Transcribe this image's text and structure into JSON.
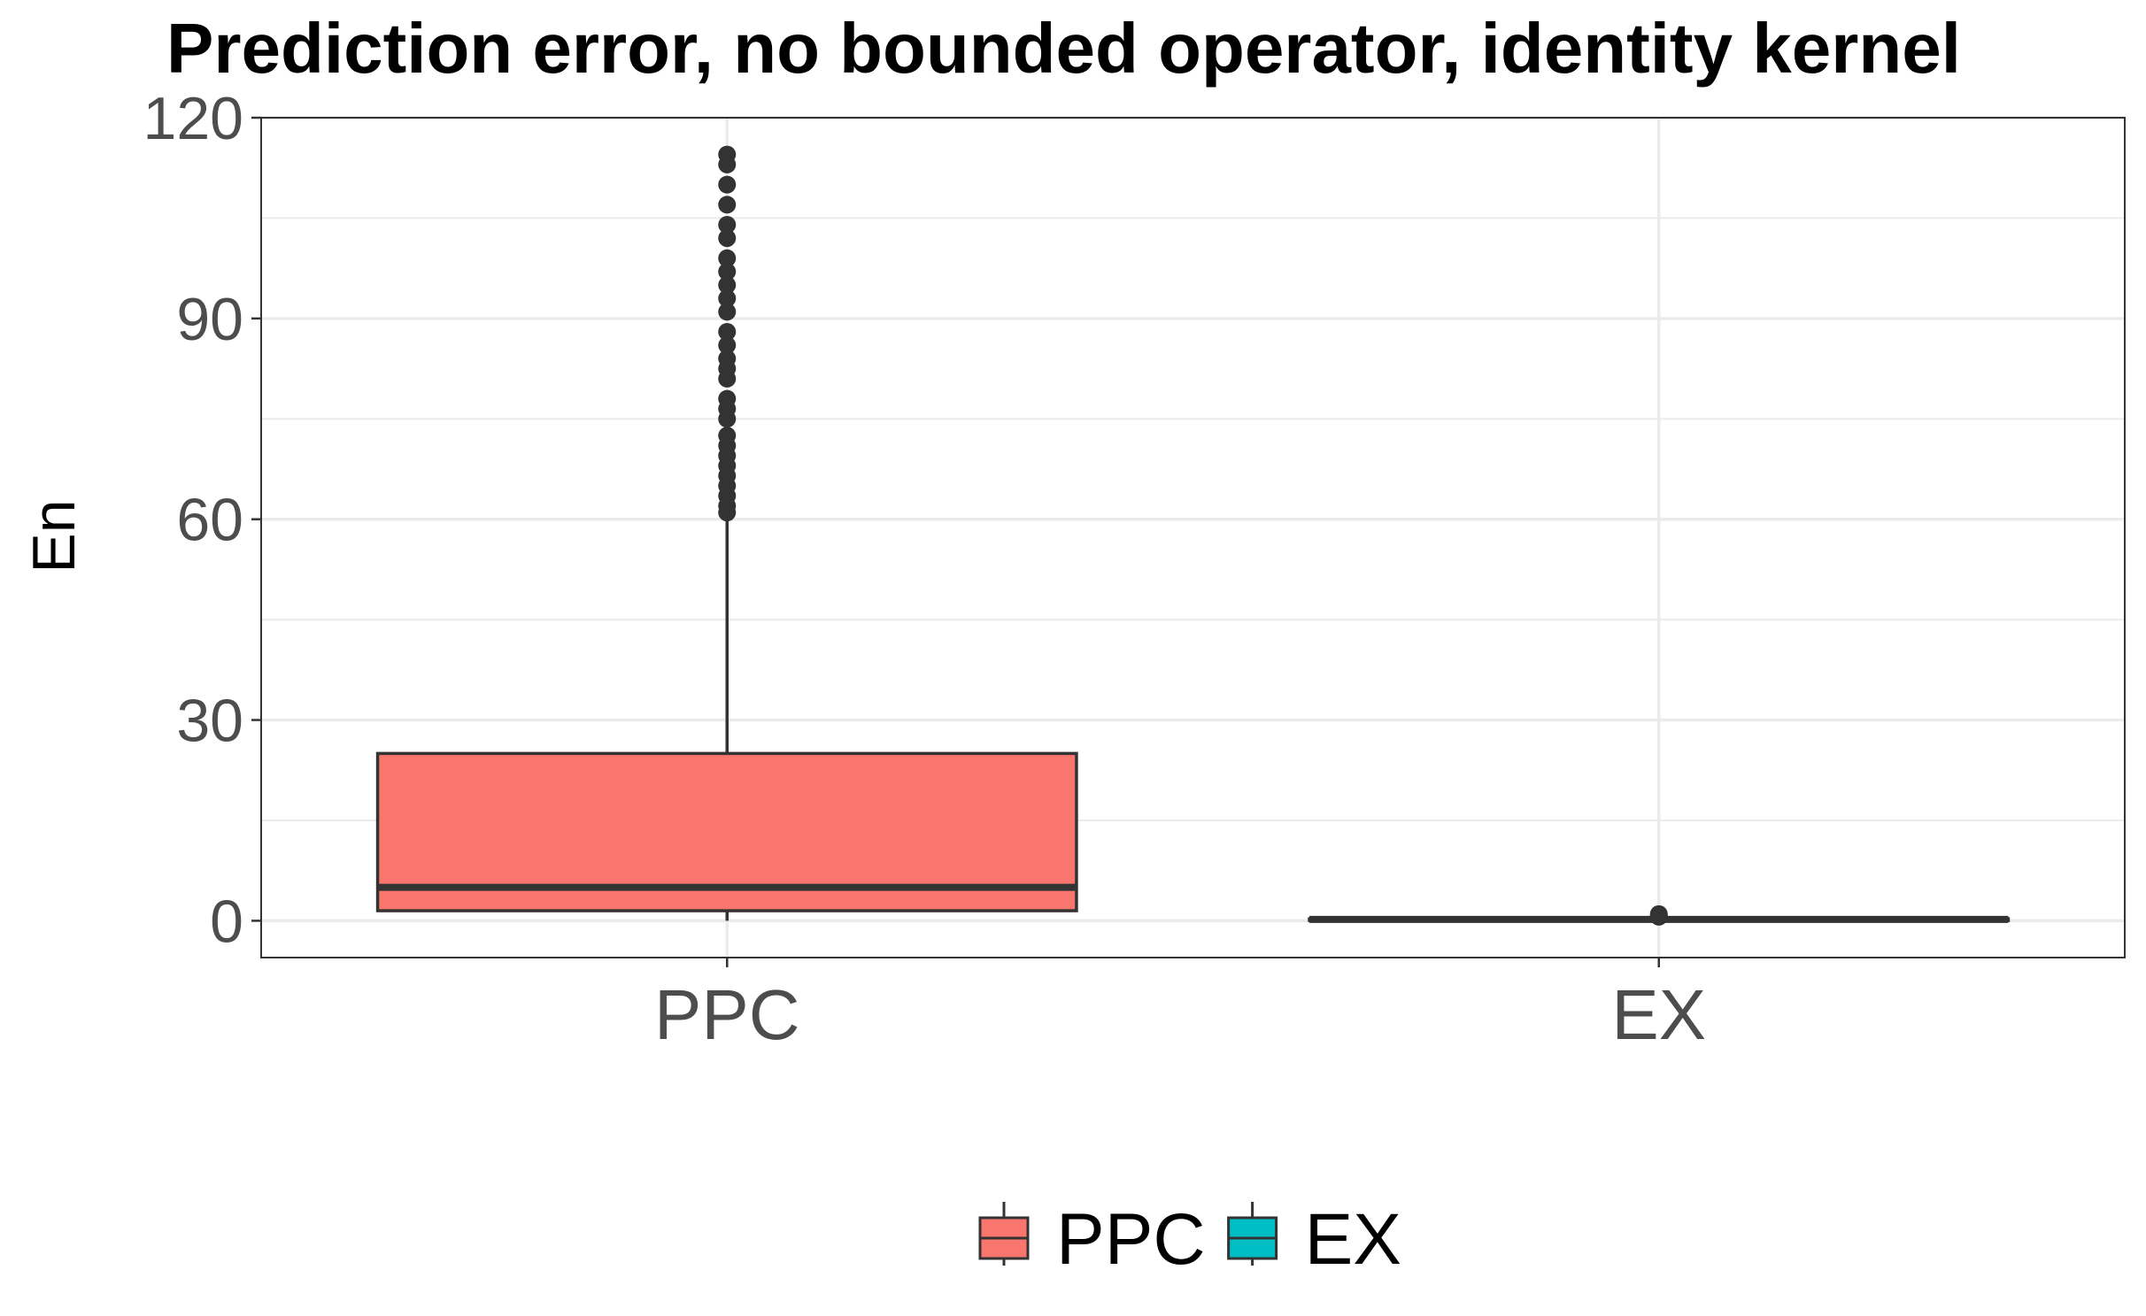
{
  "chart_data": {
    "type": "box",
    "title": "Prediction error, no bounded operator, identity kernel",
    "xlabel": "",
    "ylabel": "En",
    "ylim": [
      -5.5,
      120
    ],
    "yticks": [
      0,
      30,
      60,
      90,
      120
    ],
    "grid": true,
    "legend_position": "bottom",
    "categories": [
      "PPC",
      "EX"
    ],
    "series": [
      {
        "name": "PPC",
        "color": "#F8766D",
        "whisker_low": 0,
        "q1": 1.5,
        "median": 5,
        "q3": 25,
        "whisker_high": 60,
        "outliers": [
          61,
          62,
          63.5,
          65,
          66.5,
          68,
          69.5,
          71,
          72.5,
          75,
          76.5,
          78,
          81,
          82.5,
          84,
          86,
          88,
          91,
          93,
          95,
          97,
          99,
          102,
          104,
          107,
          110,
          113,
          114.5
        ]
      },
      {
        "name": "EX",
        "color": "#00BFC4",
        "whisker_low": 0,
        "q1": 0.1,
        "median": 0.2,
        "q3": 0.3,
        "whisker_high": 0.4,
        "outliers": [
          0.6,
          0.8,
          1.0
        ]
      }
    ]
  }
}
